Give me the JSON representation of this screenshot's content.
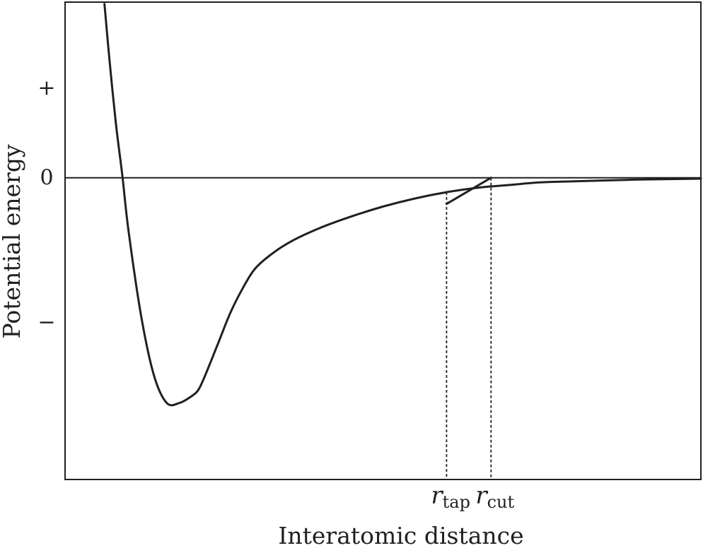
{
  "chart_data": {
    "type": "line",
    "title": "",
    "xlabel": "Interatomic distance",
    "ylabel": "Potential energy",
    "yticks": [
      {
        "label": "+",
        "value": 1
      },
      {
        "label": "0",
        "value": 0
      },
      {
        "label": "−",
        "value": -1.6
      }
    ],
    "xlim": [
      0,
      10
    ],
    "ylim": [
      -3.35,
      1.95
    ],
    "grid": false,
    "zero_line": true,
    "series": [
      {
        "x": [
          0.62,
          0.7,
          0.8,
          0.9,
          1.0,
          1.2,
          1.4,
          1.6,
          1.8,
          2.0,
          2.1,
          2.2,
          2.4,
          2.6,
          2.8,
          3.0,
          3.3,
          3.6,
          4.0,
          4.5,
          5.0,
          5.5,
          6.0,
          6.5,
          7.0,
          7.5,
          8.0,
          8.5,
          9.0,
          9.5,
          10.0
        ],
        "y": [
          1.93,
          1.3,
          0.6,
          0.03,
          -0.6,
          -1.55,
          -2.2,
          -2.5,
          -2.5,
          -2.42,
          -2.35,
          -2.2,
          -1.85,
          -1.5,
          -1.22,
          -1.0,
          -0.82,
          -0.69,
          -0.56,
          -0.43,
          -0.32,
          -0.23,
          -0.16,
          -0.11,
          -0.08,
          -0.05,
          -0.04,
          -0.03,
          -0.02,
          -0.015,
          -0.01
        ]
      },
      {
        "x": [
          6.0,
          6.7
        ],
        "y": [
          -0.29,
          0.0
        ]
      }
    ],
    "reference_lines": [
      {
        "label": "r",
        "subscript": "tap",
        "x": 6.0
      },
      {
        "label": "r",
        "subscript": "cut",
        "x": 6.7
      }
    ]
  }
}
